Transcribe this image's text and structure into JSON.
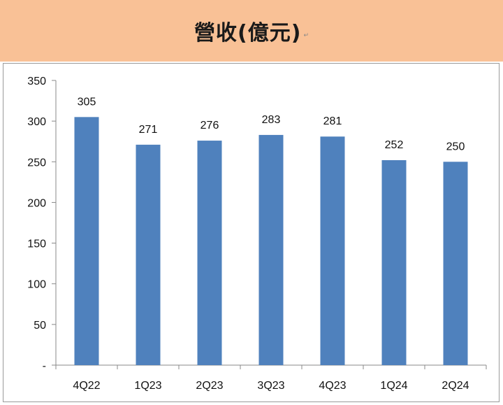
{
  "chart_data": {
    "type": "bar",
    "title": "營收(億元)",
    "categories": [
      "4Q22",
      "1Q23",
      "2Q23",
      "3Q23",
      "4Q23",
      "1Q24",
      "2Q24"
    ],
    "values": [
      305,
      271,
      276,
      283,
      281,
      252,
      250
    ],
    "data_labels": [
      "305",
      "271",
      "276",
      "283",
      "281",
      "252",
      "250"
    ],
    "y_ticks": [
      "-",
      "50",
      "100",
      "150",
      "200",
      "250",
      "300",
      "350"
    ],
    "y_tick_values": [
      0,
      50,
      100,
      150,
      200,
      250,
      300,
      350
    ],
    "ylim": [
      0,
      350
    ],
    "xlabel": "",
    "ylabel": "",
    "grid": false,
    "legend": "none",
    "colors": {
      "bar": "#4f81bd",
      "header_bg": "#f9c196"
    }
  }
}
